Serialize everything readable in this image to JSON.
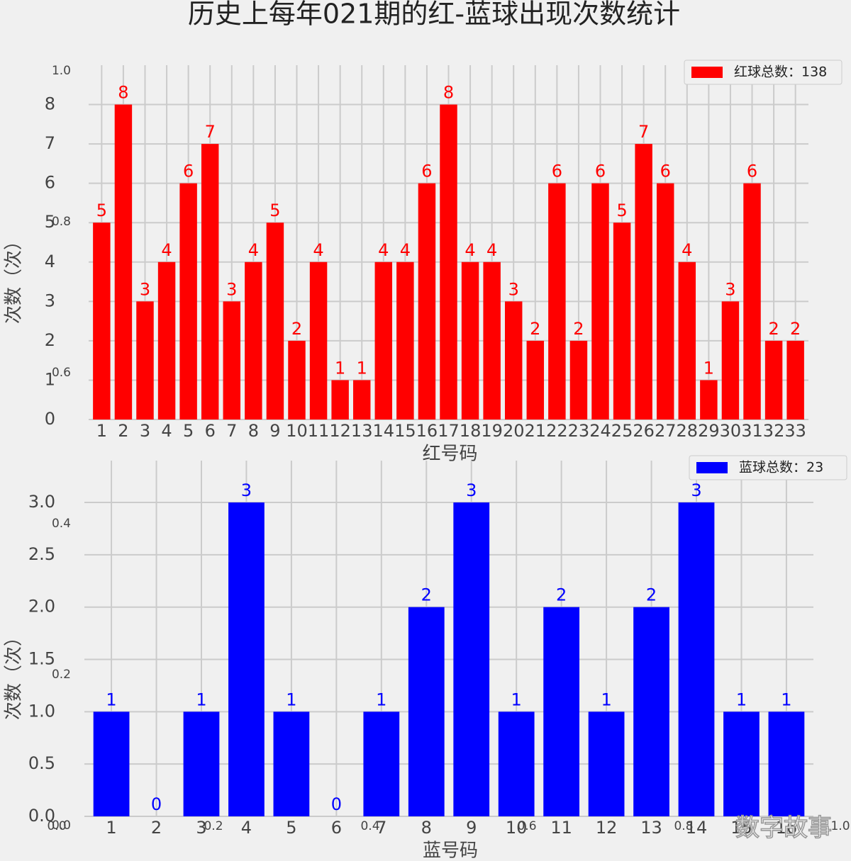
{
  "title": "历史上每年021期的红-蓝球出现次数统计",
  "watermark": "数字故事",
  "background_axis": {
    "xlim": [
      0,
      1
    ],
    "ylim": [
      0,
      1
    ],
    "xticks": [
      {
        "value": 0,
        "label": "0.0"
      },
      0.2,
      0.4,
      0.6,
      0.8,
      {
        "value": 1,
        "label": "1.0"
      }
    ],
    "yticks": [
      {
        "value": 0,
        "label": "0.0"
      },
      0.2,
      0.4,
      0.6,
      0.8,
      {
        "value": 1,
        "label": "1.0"
      }
    ]
  },
  "chart_data": [
    {
      "type": "bar",
      "xlabel": "红号码",
      "ylabel": "次数（次）",
      "legend": "upper right",
      "grid": true,
      "categories": [
        "1",
        "2",
        "3",
        "4",
        "5",
        "6",
        "7",
        "8",
        "9",
        "10",
        "11",
        "12",
        "13",
        "14",
        "15",
        "16",
        "17",
        "18",
        "19",
        "20",
        "21",
        "22",
        "23",
        "24",
        "25",
        "26",
        "27",
        "28",
        "29",
        "30",
        "31",
        "32",
        "33"
      ],
      "series": [
        {
          "name": "红球总数：138",
          "color": "#ff0000",
          "values": [
            5,
            8,
            3,
            4,
            6,
            7,
            3,
            4,
            5,
            2,
            4,
            1,
            1,
            4,
            4,
            6,
            8,
            4,
            4,
            3,
            2,
            6,
            2,
            6,
            5,
            7,
            6,
            4,
            1,
            3,
            6,
            2,
            2
          ]
        }
      ],
      "ylim": [
        0,
        9
      ],
      "yticks": [
        0,
        1,
        2,
        3,
        4,
        5,
        6,
        7,
        8
      ]
    },
    {
      "type": "bar",
      "xlabel": "蓝号码",
      "ylabel": "次数（次）",
      "legend": "upper right",
      "grid": true,
      "categories": [
        "1",
        "2",
        "3",
        "4",
        "5",
        "6",
        "7",
        "8",
        "9",
        "10",
        "11",
        "12",
        "13",
        "14",
        "15",
        "16"
      ],
      "series": [
        {
          "name": "蓝球总数：23",
          "color": "#0000ff",
          "values": [
            1,
            0,
            1,
            3,
            1,
            0,
            1,
            2,
            3,
            1,
            2,
            1,
            2,
            3,
            1,
            1
          ]
        }
      ],
      "ylim": [
        0,
        3.4
      ],
      "yticks": [
        {
          "value": 0,
          "label": "0.0"
        },
        0.5,
        {
          "value": 1,
          "label": "1.0"
        },
        1.5,
        {
          "value": 2,
          "label": "2.0"
        },
        2.5,
        {
          "value": 3,
          "label": "3.0"
        }
      ]
    }
  ]
}
